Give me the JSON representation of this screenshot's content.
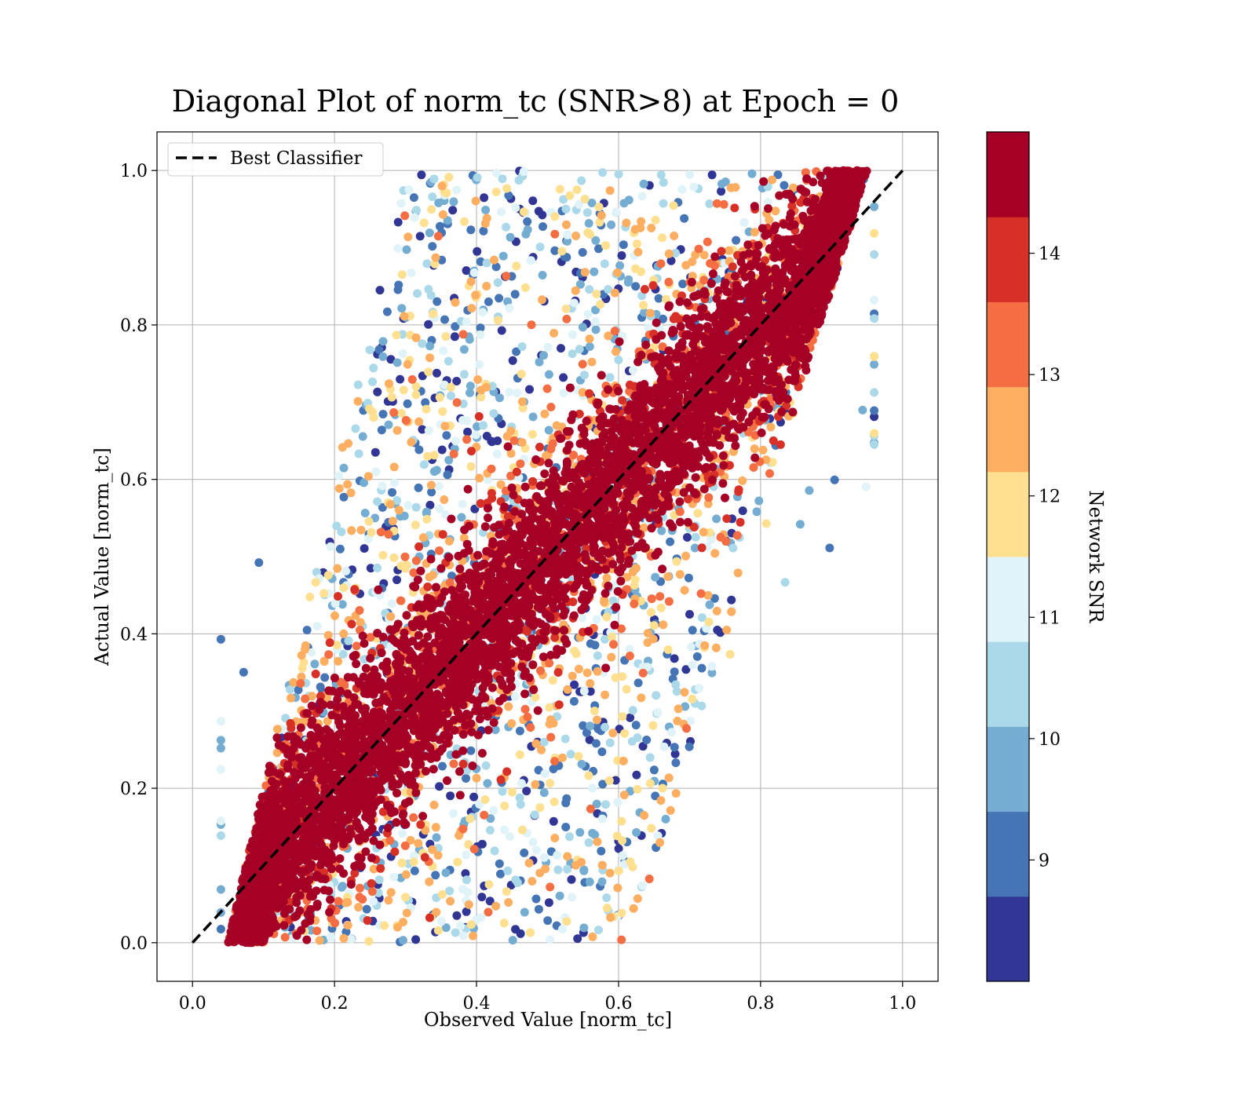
{
  "chart_data": {
    "type": "scatter",
    "title": "Diagonal Plot of norm_tc (SNR>8) at Epoch = 0",
    "xlabel": "Observed Value [norm_tc]",
    "ylabel": "Actual Value [norm_tc]",
    "xlim": [
      -0.05,
      1.05
    ],
    "ylim": [
      -0.05,
      1.05
    ],
    "xticks": [
      "0.0",
      "0.2",
      "0.4",
      "0.6",
      "0.8",
      "1.0"
    ],
    "yticks": [
      "0.0",
      "0.2",
      "0.4",
      "0.6",
      "0.8",
      "1.0"
    ],
    "grid": true,
    "legend": {
      "placement": "upper-left",
      "entries": [
        {
          "label": "Best Classifier",
          "style": "black dashed line"
        }
      ]
    },
    "reference_line": {
      "name": "Best Classifier",
      "x": [
        0,
        1
      ],
      "y": [
        0,
        1
      ],
      "color": "#000000",
      "style": "dashed"
    },
    "point_distribution": {
      "description_count_estimate": 20000,
      "x_range_at_y0": [
        0.05,
        0.62
      ],
      "x_range_at_y1": [
        0.3,
        0.95
      ],
      "color_variable": "Network SNR"
    },
    "colorbar": {
      "label": "Network SNR",
      "range": [
        8.0,
        15.0
      ],
      "ticks": [
        "9",
        "10",
        "11",
        "12",
        "13",
        "14"
      ],
      "tick_values": [
        9,
        10,
        11,
        12,
        13,
        14
      ],
      "colors": [
        "#313695",
        "#4575b4",
        "#74add1",
        "#abd9e9",
        "#e0f3f8",
        "#fee090",
        "#fdae61",
        "#f46d43",
        "#d73027",
        "#a50026"
      ],
      "levels": [
        8.0,
        8.7,
        9.4,
        10.1,
        10.8,
        11.5,
        12.2,
        12.9,
        13.6,
        14.3,
        15.0
      ]
    }
  }
}
